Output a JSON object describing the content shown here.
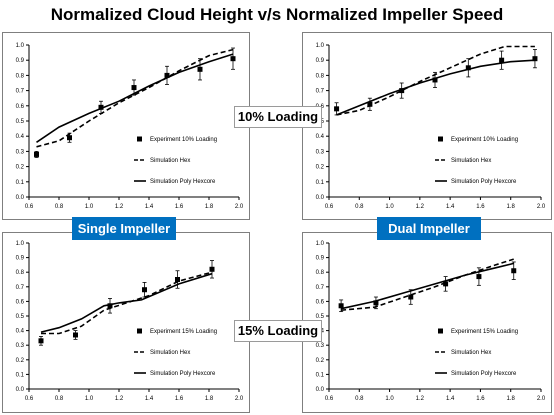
{
  "title": "Normalized Cloud Height v/s Normalized Impeller Speed",
  "labels": {
    "single": "Single Impeller",
    "dual": "Dual Impeller",
    "loading10": "10% Loading",
    "loading15": "15% Loading"
  },
  "colors": {
    "label_bg": "#0070c0",
    "series": "#000000"
  },
  "chart_data": [
    {
      "type": "line",
      "title": "",
      "xlim": [
        0.6,
        2.0
      ],
      "ylim": [
        0.0,
        1.0
      ],
      "xticks": [
        "0.6",
        "0.8",
        "1.0",
        "1.2",
        "1.4",
        "1.6",
        "1.8",
        "2.0"
      ],
      "yticks": [
        "0.0",
        "0.1",
        "0.2",
        "0.3",
        "0.4",
        "0.5",
        "0.6",
        "0.7",
        "0.8",
        "0.9",
        "1.0"
      ],
      "legend_position": "bottom-right",
      "series": [
        {
          "name": "Experiment 10% Loading",
          "style": "marker",
          "x": [
            0.65,
            0.87,
            1.08,
            1.3,
            1.52,
            1.74,
            1.96
          ],
          "y": [
            0.28,
            0.39,
            0.59,
            0.72,
            0.8,
            0.84,
            0.91
          ],
          "err": [
            0.02,
            0.03,
            0.04,
            0.05,
            0.06,
            0.07,
            0.07
          ]
        },
        {
          "name": "Simulation Hex",
          "style": "dashed",
          "x": [
            0.65,
            0.8,
            1.0,
            1.2,
            1.4,
            1.6,
            1.8,
            1.96
          ],
          "y": [
            0.33,
            0.37,
            0.5,
            0.62,
            0.72,
            0.83,
            0.93,
            0.97
          ]
        },
        {
          "name": "Simulation Poly Hexcore",
          "style": "solid",
          "x": [
            0.65,
            0.8,
            1.0,
            1.2,
            1.4,
            1.6,
            1.8,
            1.96
          ],
          "y": [
            0.36,
            0.46,
            0.55,
            0.63,
            0.73,
            0.82,
            0.89,
            0.94
          ]
        }
      ]
    },
    {
      "type": "line",
      "title": "",
      "xlim": [
        0.6,
        2.0
      ],
      "ylim": [
        0.0,
        1.0
      ],
      "xticks": [
        "0.6",
        "0.8",
        "1.0",
        "1.2",
        "1.4",
        "1.6",
        "1.8",
        "2.0"
      ],
      "yticks": [
        "0.0",
        "0.1",
        "0.2",
        "0.3",
        "0.4",
        "0.5",
        "0.6",
        "0.7",
        "0.8",
        "0.9",
        "1.0"
      ],
      "legend_position": "bottom-right",
      "series": [
        {
          "name": "Experiment 10% Loading",
          "style": "marker",
          "x": [
            0.65,
            0.87,
            1.08,
            1.3,
            1.52,
            1.74,
            1.96
          ],
          "y": [
            0.58,
            0.61,
            0.7,
            0.77,
            0.85,
            0.9,
            0.91
          ],
          "err": [
            0.04,
            0.04,
            0.05,
            0.05,
            0.06,
            0.06,
            0.06
          ]
        },
        {
          "name": "Simulation Hex",
          "style": "dashed",
          "x": [
            0.65,
            0.8,
            1.0,
            1.2,
            1.4,
            1.6,
            1.76,
            1.96
          ],
          "y": [
            0.54,
            0.57,
            0.66,
            0.76,
            0.85,
            0.94,
            0.99,
            0.99
          ]
        },
        {
          "name": "Simulation Poly Hexcore",
          "style": "solid",
          "x": [
            0.65,
            0.8,
            1.0,
            1.2,
            1.4,
            1.6,
            1.8,
            1.96
          ],
          "y": [
            0.54,
            0.6,
            0.68,
            0.75,
            0.81,
            0.86,
            0.89,
            0.9
          ]
        }
      ]
    },
    {
      "type": "line",
      "title": "",
      "xlim": [
        0.6,
        2.0
      ],
      "ylim": [
        0.0,
        1.0
      ],
      "xticks": [
        "0.6",
        "0.8",
        "1.0",
        "1.2",
        "1.4",
        "1.6",
        "1.8",
        "2.0"
      ],
      "yticks": [
        "0.0",
        "0.1",
        "0.2",
        "0.3",
        "0.4",
        "0.5",
        "0.6",
        "0.7",
        "0.8",
        "0.9",
        "1.0"
      ],
      "legend_position": "bottom-right",
      "series": [
        {
          "name": "Experiment 15% Loading",
          "style": "marker",
          "x": [
            0.68,
            0.91,
            1.14,
            1.37,
            1.59,
            1.82
          ],
          "y": [
            0.33,
            0.37,
            0.57,
            0.68,
            0.75,
            0.82
          ],
          "err": [
            0.03,
            0.03,
            0.05,
            0.05,
            0.06,
            0.06
          ]
        },
        {
          "name": "Simulation Hex",
          "style": "dashed",
          "x": [
            0.68,
            0.8,
            0.95,
            1.1,
            1.25,
            1.4,
            1.6,
            1.82
          ],
          "y": [
            0.38,
            0.38,
            0.43,
            0.54,
            0.59,
            0.64,
            0.74,
            0.8
          ]
        },
        {
          "name": "Simulation Poly Hexcore",
          "style": "solid",
          "x": [
            0.68,
            0.8,
            0.95,
            1.1,
            1.2,
            1.35,
            1.6,
            1.82
          ],
          "y": [
            0.39,
            0.42,
            0.48,
            0.57,
            0.59,
            0.61,
            0.72,
            0.79
          ]
        }
      ]
    },
    {
      "type": "line",
      "title": "",
      "xlim": [
        0.6,
        2.0
      ],
      "ylim": [
        0.0,
        1.0
      ],
      "xticks": [
        "0.6",
        "0.8",
        "1.0",
        "1.2",
        "1.4",
        "1.6",
        "1.8",
        "2.0"
      ],
      "yticks": [
        "0.0",
        "0.1",
        "0.2",
        "0.3",
        "0.4",
        "0.5",
        "0.6",
        "0.7",
        "0.8",
        "0.9",
        "1.0"
      ],
      "legend_position": "bottom-right",
      "series": [
        {
          "name": "Experiment 15% Loading",
          "style": "marker",
          "x": [
            0.68,
            0.91,
            1.14,
            1.37,
            1.59,
            1.82
          ],
          "y": [
            0.57,
            0.59,
            0.63,
            0.72,
            0.77,
            0.81
          ],
          "err": [
            0.04,
            0.04,
            0.05,
            0.05,
            0.06,
            0.06
          ]
        },
        {
          "name": "Simulation Hex",
          "style": "dashed",
          "x": [
            0.68,
            0.9,
            1.1,
            1.3,
            1.5,
            1.7,
            1.82
          ],
          "y": [
            0.54,
            0.56,
            0.63,
            0.7,
            0.78,
            0.85,
            0.89
          ]
        },
        {
          "name": "Simulation Poly Hexcore",
          "style": "solid",
          "x": [
            0.68,
            0.9,
            1.1,
            1.3,
            1.5,
            1.7,
            1.82
          ],
          "y": [
            0.55,
            0.6,
            0.66,
            0.72,
            0.78,
            0.83,
            0.86
          ]
        }
      ]
    }
  ]
}
